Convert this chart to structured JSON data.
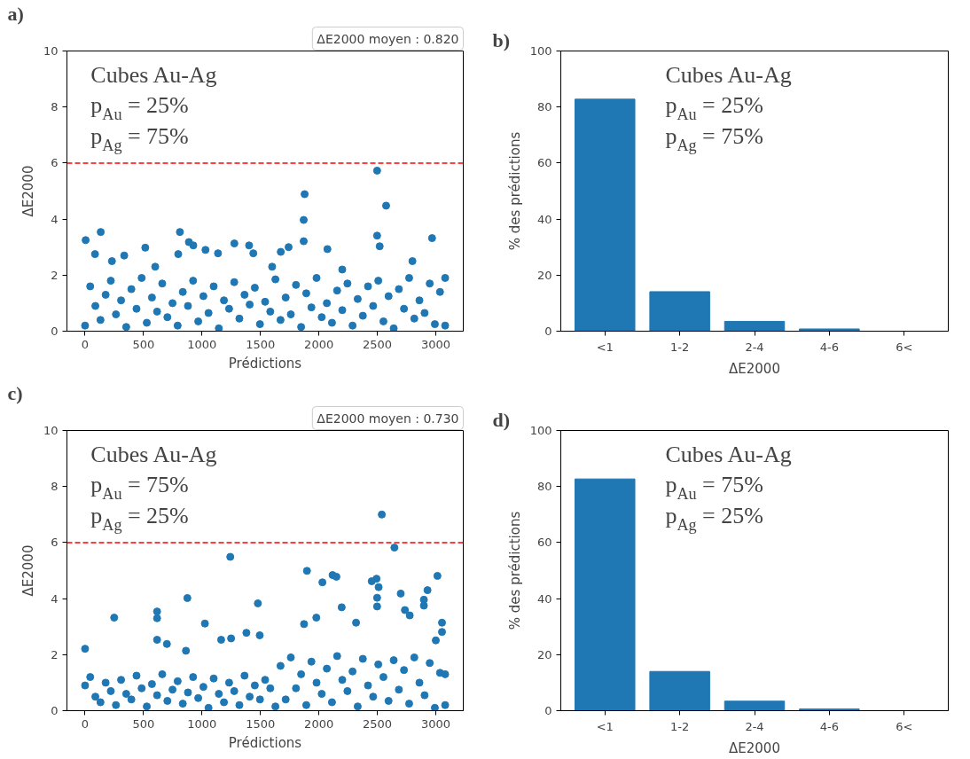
{
  "chart_data": [
    {
      "type": "scatter",
      "xlabel": "Prédictions",
      "ylabel": "ΔE2000",
      "annotations": [
        "a)",
        "ΔE2000 moyen : 0.820",
        "Cubes Au-Ag",
        "p$_{Au}$ = 25%",
        "p$_{Ag}$ = 75%"
      ],
      "xlim": [
        -155,
        3235
      ],
      "ylim": [
        0,
        10
      ],
      "xticks": [
        0,
        500,
        1000,
        1500,
        2000,
        2500,
        3000
      ],
      "yticks": [
        0,
        2,
        4,
        6,
        8,
        10
      ],
      "grid": false,
      "marker": "circle",
      "ref_lines": [
        {
          "axis": "y",
          "value": 6,
          "color": "#ff0000",
          "line_style": "dashed"
        }
      ],
      "series": [
        {
          "color": "#1f77b4",
          "x": [
            0,
            44,
            88,
            132,
            176,
            220,
            264,
            308,
            352,
            396,
            440,
            484,
            528,
            572,
            616,
            660,
            704,
            748,
            792,
            836,
            880,
            924,
            968,
            1012,
            1056,
            1100,
            1144,
            1188,
            1232,
            1276,
            1320,
            1364,
            1408,
            1452,
            1496,
            1540,
            1584,
            1628,
            1672,
            1716,
            1760,
            1804,
            1848,
            1892,
            1936,
            1980,
            2024,
            2068,
            2112,
            2156,
            2200,
            2244,
            2288,
            2332,
            2376,
            2420,
            2464,
            2508,
            2552,
            2596,
            2640,
            2684,
            2728,
            2772,
            2816,
            2860,
            2904,
            2948,
            2992,
            3036,
            5,
            134,
            811,
            2498,
            2575,
            1878,
            1870,
            1870,
            2498,
            2520,
            2968,
            2073,
            1030,
            888,
            926,
            1277,
            1403,
            515,
            1741,
            1674,
            85,
            797,
            335,
            1137,
            1439,
            3080,
            3080,
            230,
            1600,
            2200,
            2800,
            600
          ],
          "values": [
            0.2,
            1.6,
            0.9,
            0.4,
            1.3,
            1.8,
            0.6,
            1.1,
            0.15,
            1.5,
            0.8,
            1.9,
            0.3,
            1.2,
            0.7,
            1.7,
            0.5,
            1.0,
            0.2,
            1.4,
            0.9,
            1.8,
            0.35,
            1.25,
            0.65,
            1.6,
            0.1,
            1.1,
            0.8,
            1.75,
            0.45,
            1.3,
            0.95,
            1.55,
            0.25,
            1.05,
            0.7,
            1.85,
            0.4,
            1.2,
            0.6,
            1.65,
            0.15,
            1.35,
            0.85,
            1.9,
            0.5,
            1.0,
            0.3,
            1.45,
            0.75,
            1.7,
            0.2,
            1.15,
            0.55,
            1.6,
            0.9,
            1.8,
            0.35,
            1.25,
            0.1,
            1.5,
            0.8,
            1.9,
            0.45,
            1.1,
            0.65,
            1.7,
            0.25,
            1.4,
            3.25,
            3.54,
            3.54,
            5.73,
            4.48,
            4.89,
            3.97,
            3.21,
            3.41,
            3.03,
            3.32,
            2.93,
            2.9,
            3.18,
            3.06,
            3.13,
            3.06,
            2.98,
            3.0,
            2.83,
            2.75,
            2.75,
            2.7,
            2.78,
            2.78,
            1.9,
            0.2,
            2.5,
            2.3,
            2.2,
            2.5,
            2.3
          ]
        }
      ]
    },
    {
      "type": "bar",
      "xlabel": "ΔE2000",
      "ylabel": "% des prédictions",
      "annotations": [
        "b)",
        "Cubes Au-Ag",
        "p$_{Au}$ = 25%",
        "p$_{Ag}$ = 75%"
      ],
      "categories": [
        "<1",
        "1-2",
        "2-4",
        "4-6",
        "6<"
      ],
      "ylim": [
        0,
        100
      ],
      "yticks": [
        0,
        20,
        40,
        60,
        80,
        100
      ],
      "grid": false,
      "series": [
        {
          "color": "#1f77b4",
          "values": [
            82.8,
            14.1,
            3.5,
            0.8,
            0
          ]
        }
      ]
    },
    {
      "type": "scatter",
      "xlabel": "Prédictions",
      "ylabel": "ΔE2000",
      "annotations": [
        "c)",
        "ΔE2000 moyen : 0.730",
        "Cubes Au-Ag",
        "p$_{Au}$ = 75%",
        "p$_{Ag}$ = 25%"
      ],
      "xlim": [
        -155,
        3235
      ],
      "ylim": [
        0,
        10
      ],
      "xticks": [
        0,
        500,
        1000,
        1500,
        2000,
        2500,
        3000
      ],
      "yticks": [
        0,
        2,
        4,
        6,
        8,
        10
      ],
      "grid": false,
      "marker": "circle",
      "ref_lines": [
        {
          "axis": "y",
          "value": 6,
          "color": "#ff0000",
          "line_style": "dashed"
        }
      ],
      "series": [
        {
          "color": "#1f77b4",
          "x": [
            0,
            44,
            88,
            132,
            176,
            220,
            264,
            308,
            352,
            396,
            440,
            484,
            528,
            572,
            616,
            660,
            704,
            748,
            792,
            836,
            880,
            924,
            968,
            1012,
            1056,
            1100,
            1144,
            1188,
            1232,
            1276,
            1320,
            1364,
            1408,
            1452,
            1496,
            1540,
            1584,
            1628,
            1672,
            1716,
            1760,
            1804,
            1848,
            1892,
            1936,
            1980,
            2024,
            2068,
            2112,
            2156,
            2200,
            2244,
            2288,
            2332,
            2376,
            2420,
            2464,
            2508,
            2552,
            2596,
            2640,
            2684,
            2728,
            2772,
            2816,
            2860,
            2904,
            2948,
            2992,
            3036,
            2538,
            2646,
            1242,
            1898,
            2117,
            2150,
            2030,
            3014,
            2493,
            2452,
            2511,
            2498,
            2498,
            2700,
            2929,
            2898,
            2898,
            875,
            1478,
            249,
            616,
            616,
            2195,
            1025,
            1978,
            1873,
            2318,
            2736,
            2777,
            3053,
            3053,
            3000,
            1380,
            1164,
            1249,
            1494,
            616,
            700,
            863,
            0,
            3080,
            3080
          ],
          "values": [
            0.9,
            1.2,
            0.5,
            0.3,
            1.0,
            0.7,
            0.2,
            1.1,
            0.6,
            0.4,
            1.25,
            0.8,
            0.15,
            0.95,
            0.55,
            1.3,
            0.35,
            0.75,
            1.05,
            0.25,
            0.65,
            1.2,
            0.45,
            0.85,
            0.1,
            1.15,
            0.6,
            0.3,
            1.0,
            0.7,
            0.2,
            1.25,
            0.5,
            0.9,
            0.4,
            1.1,
            0.8,
            0.15,
            1.6,
            0.4,
            1.9,
            0.8,
            1.3,
            0.2,
            1.75,
            1.0,
            0.6,
            1.5,
            0.3,
            1.95,
            1.1,
            0.7,
            1.4,
            0.15,
            1.85,
            0.9,
            0.5,
            1.65,
            1.2,
            0.35,
            1.8,
            0.75,
            1.45,
            0.25,
            1.9,
            1.0,
            0.55,
            1.7,
            0.1,
            1.35,
            7.0,
            5.82,
            5.49,
            4.99,
            4.84,
            4.78,
            4.58,
            4.81,
            4.71,
            4.62,
            4.41,
            4.03,
            3.72,
            4.18,
            4.3,
            3.96,
            3.75,
            4.02,
            3.83,
            3.32,
            3.54,
            3.3,
            3.69,
            3.11,
            3.32,
            3.09,
            3.14,
            3.59,
            3.4,
            3.14,
            2.81,
            2.51,
            2.78,
            2.53,
            2.58,
            2.69,
            2.53,
            2.38,
            2.14,
            2.21,
            1.3,
            0.2
          ]
        }
      ]
    },
    {
      "type": "bar",
      "xlabel": "ΔE2000",
      "ylabel": "% des prédictions",
      "annotations": [
        "d)",
        "Cubes Au-Ag",
        "p$_{Au}$ = 75%",
        "p$_{Ag}$ = 25%"
      ],
      "categories": [
        "<1",
        "1-2",
        "2-4",
        "4-6",
        "6<"
      ],
      "ylim": [
        0,
        100
      ],
      "yticks": [
        0,
        20,
        40,
        60,
        80,
        100
      ],
      "grid": false,
      "series": [
        {
          "color": "#1f77b4",
          "values": [
            82.7,
            14.0,
            3.4,
            0.6,
            0
          ]
        }
      ]
    }
  ]
}
